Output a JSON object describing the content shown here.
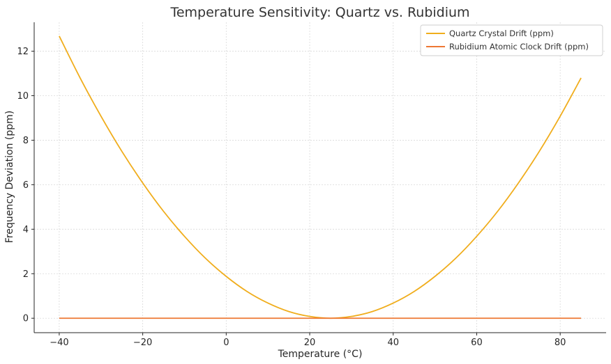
{
  "chart_data": {
    "type": "line",
    "title": "Temperature Sensitivity: Quartz vs. Rubidium",
    "xlabel": "Temperature (°C)",
    "ylabel": "Frequency Deviation (ppm)",
    "xlim": [
      -46,
      91
    ],
    "ylim": [
      -0.65,
      13.3
    ],
    "xticks": [
      -40,
      -20,
      0,
      20,
      40,
      60,
      80
    ],
    "xtick_labels": [
      "−40",
      "−20",
      "0",
      "20",
      "40",
      "60",
      "80"
    ],
    "yticks": [
      0,
      2,
      4,
      6,
      8,
      10,
      12
    ],
    "ytick_labels": [
      "0",
      "2",
      "4",
      "6",
      "8",
      "10",
      "12"
    ],
    "grid": true,
    "legend_position": "top-right",
    "series": [
      {
        "name": "Quartz Crystal Drift (ppm)",
        "color": "#f0ad1c",
        "x": [
          -40,
          -35,
          -30,
          -25,
          -20,
          -15,
          -10,
          -5,
          0,
          5,
          10,
          15,
          20,
          25,
          30,
          35,
          40,
          45,
          50,
          55,
          60,
          65,
          70,
          75,
          80,
          85
        ],
        "y": [
          12.68,
          10.8,
          9.08,
          7.5,
          6.08,
          4.8,
          3.68,
          2.7,
          1.88,
          1.2,
          0.68,
          0.3,
          0.08,
          0.0,
          0.08,
          0.3,
          0.68,
          1.2,
          1.88,
          2.7,
          3.68,
          4.8,
          6.08,
          7.5,
          9.08,
          10.8
        ]
      },
      {
        "name": "Rubidium Atomic Clock Drift (ppm)",
        "color": "#ee7733",
        "x": [
          -40,
          85
        ],
        "y": [
          0.0,
          0.0
        ]
      }
    ]
  }
}
